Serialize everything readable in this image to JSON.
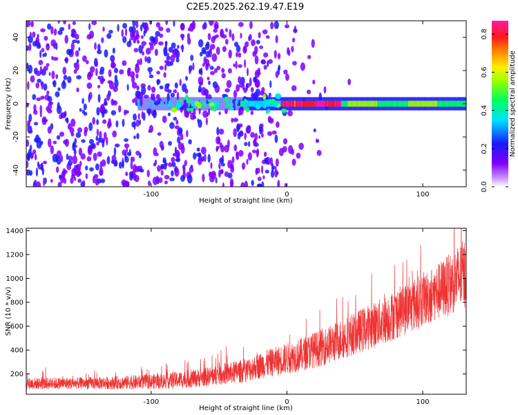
{
  "title": "C2E5.2025.262.19.47.E19",
  "chart_data": [
    {
      "type": "heatmap",
      "name": "spectrogram",
      "xlabel": "Height of straight line (km)",
      "ylabel": "Frequency (Hz)",
      "xlim": [
        -192,
        132
      ],
      "ylim": [
        -50,
        50
      ],
      "xticks": [
        -100,
        0,
        100
      ],
      "xtick_labels": [
        "-100",
        "0",
        "100"
      ],
      "yticks": [
        -40,
        -20,
        0,
        20,
        40
      ],
      "ytick_labels": [
        "-40",
        "-20",
        "0",
        "20",
        "40"
      ],
      "colorbar": {
        "label": "Normalized spectral amplitude",
        "range": [
          0,
          0.87
        ],
        "ticks": [
          0,
          0.2,
          0.4,
          0.6,
          0.8
        ],
        "tick_labels": [
          "0.0",
          "0.2",
          "0.4",
          "0.6",
          "0.8"
        ],
        "colormap": "rainbow (purple-blue-cyan-green-yellow-red-magenta)"
      },
      "description_points": {
        "noise_region_x": [
          -192,
          -20
        ],
        "signal_center_frequency_hz": 0,
        "strong_signal_x": [
          -5,
          40
        ],
        "band_halfwidth_hz": 4
      }
    },
    {
      "type": "line",
      "name": "snr",
      "xlabel": "Height of straight line (km)",
      "ylabel": "SNR (10 * v/v)",
      "xlim": [
        -192,
        132
      ],
      "ylim": [
        30,
        1420
      ],
      "xticks": [
        -100,
        0,
        100
      ],
      "xtick_labels": [
        "-100",
        "0",
        "100"
      ],
      "yticks": [
        200,
        400,
        600,
        800,
        1000,
        1200,
        1400
      ],
      "ytick_labels": [
        "200",
        "400",
        "600",
        "800",
        "1000",
        "1200",
        "1400"
      ],
      "series": [
        {
          "name": "SNR",
          "color": "#ee3333",
          "x": [
            -192,
            -170,
            -150,
            -130,
            -110,
            -90,
            -70,
            -50,
            -30,
            -20,
            -10,
            0,
            10,
            20,
            30,
            40,
            50,
            60,
            70,
            80,
            90,
            100,
            110,
            120,
            132
          ],
          "mean": [
            120,
            120,
            122,
            125,
            130,
            140,
            160,
            190,
            230,
            270,
            300,
            330,
            360,
            400,
            440,
            490,
            540,
            590,
            640,
            700,
            760,
            820,
            880,
            950,
            1050
          ],
          "spread": [
            50,
            50,
            50,
            55,
            60,
            65,
            75,
            85,
            100,
            110,
            120,
            130,
            140,
            150,
            160,
            170,
            180,
            190,
            200,
            210,
            220,
            230,
            240,
            260,
            300
          ]
        }
      ]
    }
  ]
}
